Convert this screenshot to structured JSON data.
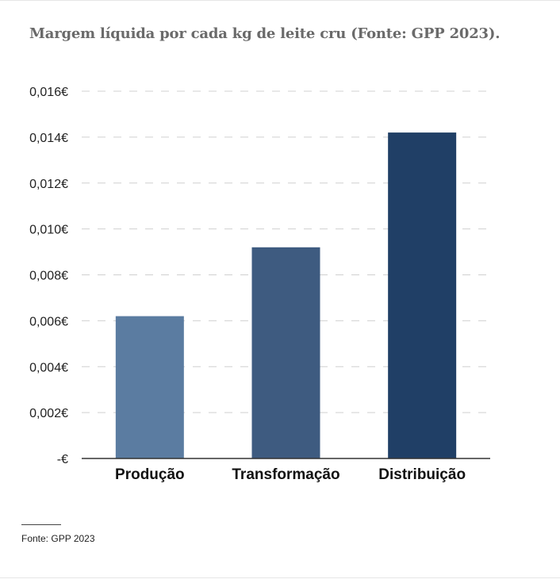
{
  "title": "Margem líquida por cada kg de leite cru (Fonte: GPP 2023).",
  "source": "Fonte: GPP 2023",
  "colors": {
    "bars": [
      "#5b7ca1",
      "#3e5b80",
      "#203f66"
    ],
    "grid": "#d0d0d0",
    "baseline": "#333333"
  },
  "chart_data": {
    "type": "bar",
    "categories": [
      "Produção",
      "Transformação",
      "Distribuição"
    ],
    "values": [
      0.0062,
      0.0092,
      0.0142
    ],
    "ylim": [
      0,
      0.016
    ],
    "yticks": [
      0,
      0.002,
      0.004,
      0.006,
      0.008,
      0.01,
      0.012,
      0.014,
      0.016
    ],
    "ytick_labels": [
      "-€",
      "0,002€",
      "0,004€",
      "0,006€",
      "0,008€",
      "0,010€",
      "0,012€",
      "0,014€",
      "0,016€"
    ],
    "grid": true,
    "legend": "none",
    "xlabel": "",
    "ylabel": ""
  }
}
